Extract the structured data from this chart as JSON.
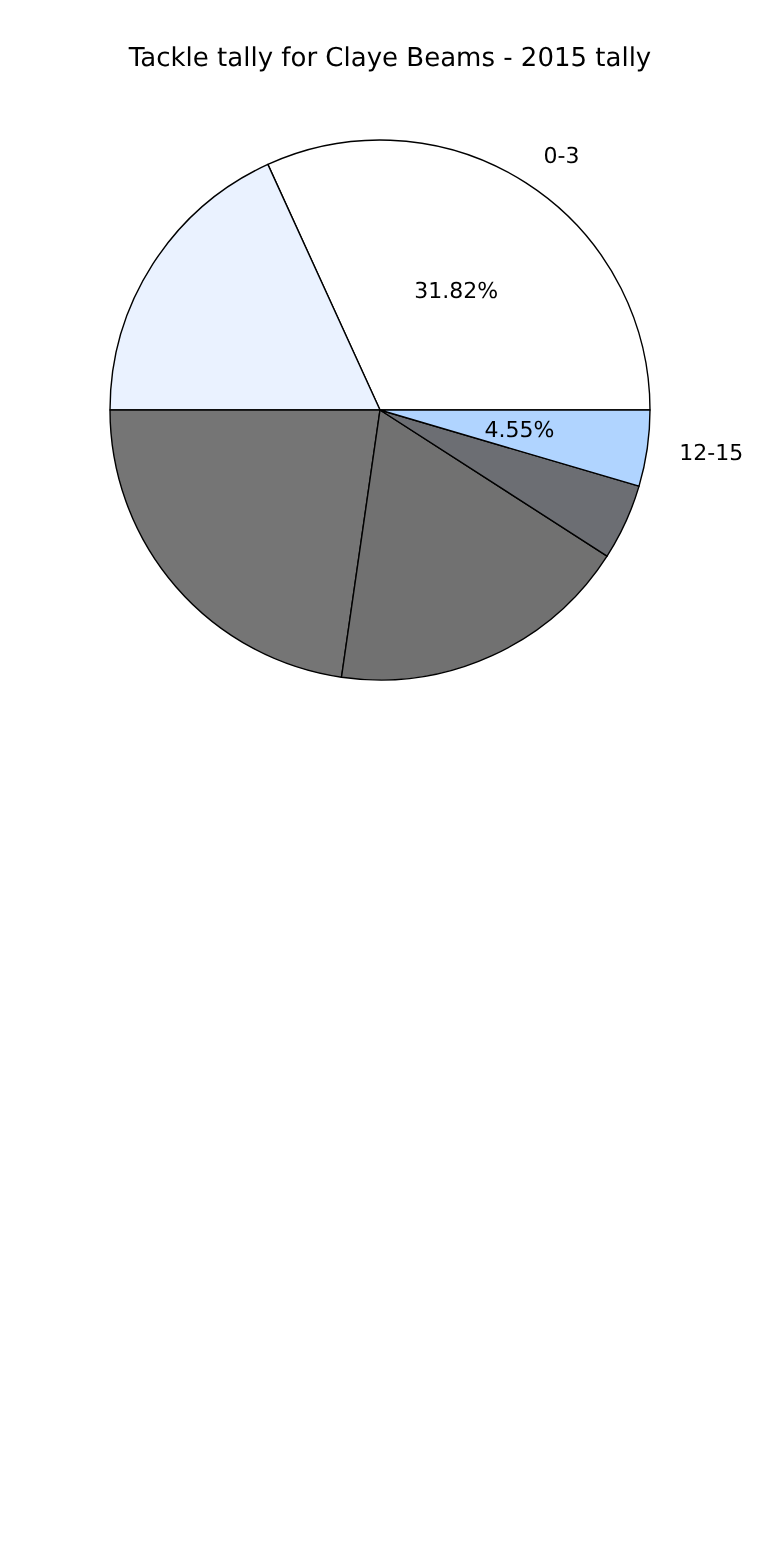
{
  "chart_data": {
    "type": "pie",
    "title": "Tackle tally for Claye Beams - 2015 tally",
    "categories": [
      "0-3",
      null,
      null,
      null,
      null,
      "12-15"
    ],
    "values": [
      31.82,
      18.18,
      22.73,
      18.18,
      4.55,
      4.55
    ],
    "colors": [
      "#ffffff",
      "#eaf2ff",
      "#757575",
      "#717171",
      "#6c6e73",
      "#b0d4ff"
    ],
    "value_labels": [
      "31.82%",
      null,
      null,
      null,
      null,
      "4.55%"
    ],
    "legend": false
  }
}
